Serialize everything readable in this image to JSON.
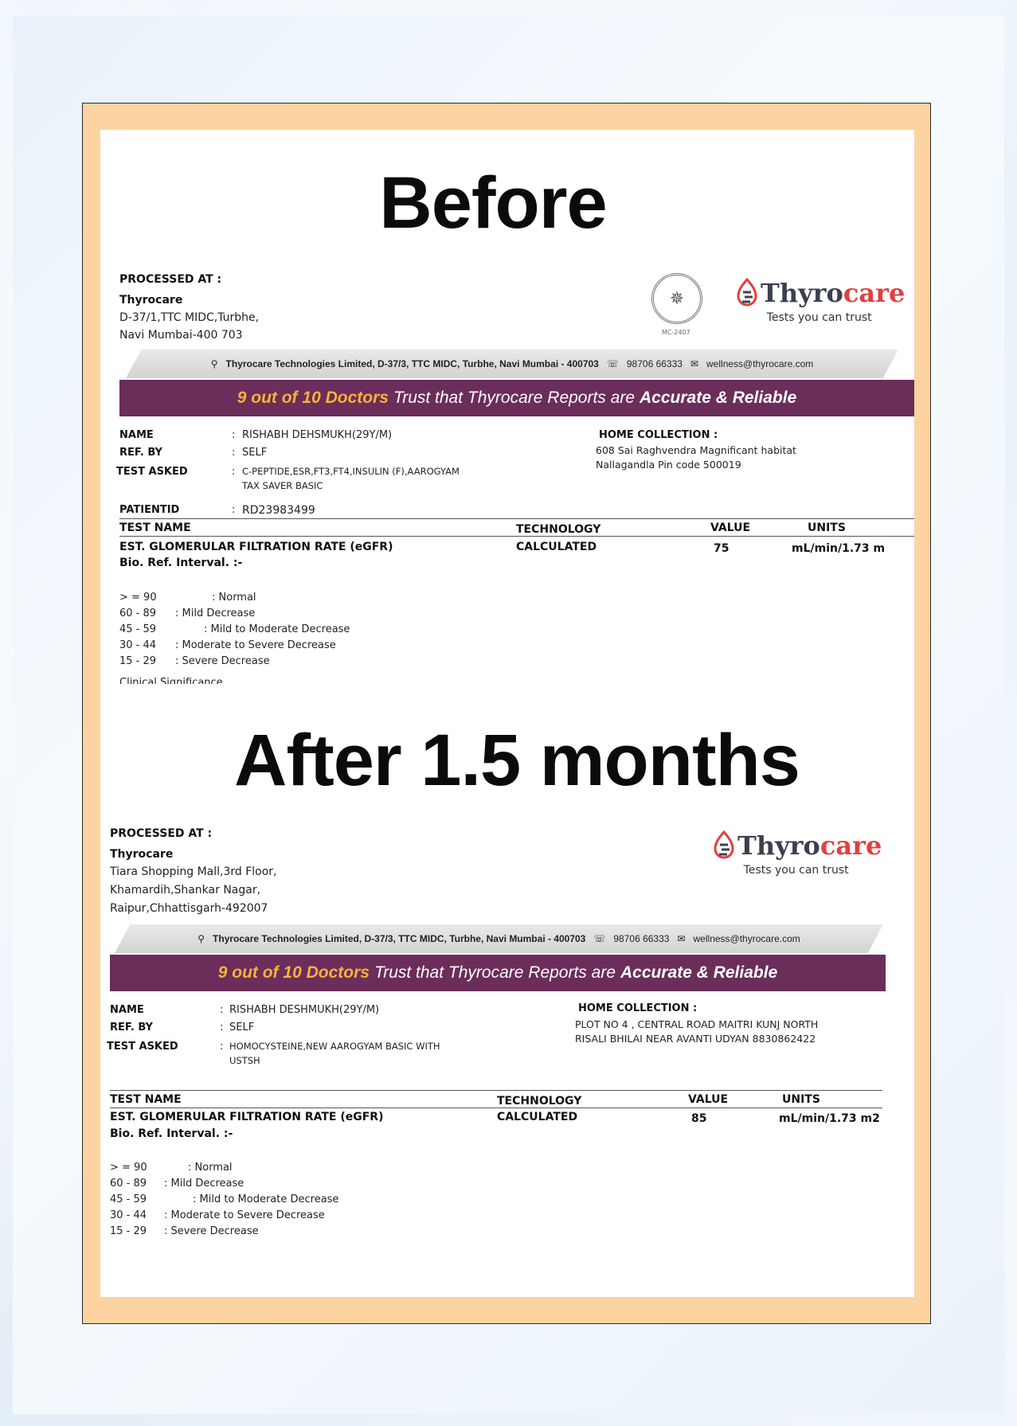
{
  "headings": {
    "before": "Before",
    "after": "After 1.5 months"
  },
  "brand": {
    "name_a": "Thyro",
    "name_b": "care",
    "tagline": "Tests you can trust",
    "seal_code": "MC-2407"
  },
  "banner": {
    "address": "Thyrocare Technologies Limited, D-37/3, TTC MIDC, Turbhe, Navi Mumbai - 400703",
    "phone": "98706 66333",
    "email": "wellness@thyrocare.com",
    "trust_highlight": "9 out of 10 Doctors",
    "trust_middle": "Trust that Thyrocare Reports are",
    "trust_bold": "Accurate & Reliable"
  },
  "labels": {
    "processed_at": "PROCESSED AT :",
    "name": "NAME",
    "ref_by": "REF. BY",
    "test_asked": "TEST ASKED",
    "home_collection": "HOME COLLECTION :",
    "patient_id": "PATIENTID",
    "test_name": "TEST NAME",
    "technology": "TECHNOLOGY",
    "value": "VALUE",
    "units": "UNITS",
    "colon": ":"
  },
  "ranges": [
    {
      "range": "> = 90",
      "desc": ": Normal"
    },
    {
      "range": "60 - 89",
      "desc": ": Mild Decrease"
    },
    {
      "range": "45 - 59",
      "desc": ": Mild to Moderate Decrease"
    },
    {
      "range": "30 - 44",
      "desc": ": Moderate to Severe Decrease"
    },
    {
      "range": "15 - 29",
      "desc": ": Severe Decrease"
    }
  ],
  "before": {
    "lab_name": "Thyrocare",
    "lab_addr1": "D-37/1,TTC MIDC,Turbhe,",
    "lab_addr2": "Navi Mumbai-400 703",
    "name": "RISHABH DEHSMUKH(29Y/M)",
    "ref_by": "SELF",
    "test_asked1": "C-PEPTIDE,ESR,FT3,FT4,INSULIN (F),AAROGYAM",
    "test_asked2": "TAX SAVER  BASIC",
    "home1": "608 Sai Raghvendra Magnificant habitat",
    "home2": "Nallagandla Pin code 500019",
    "patient_id": "RD23983499",
    "test": "EST. GLOMERULAR FILTRATION RATE (eGFR)",
    "interval": "Bio. Ref. Interval. :-",
    "technology": "CALCULATED",
    "value": "75",
    "units": "mL/min/1.73 m",
    "clinical": "Clinical Significance"
  },
  "after": {
    "lab_name": "Thyrocare",
    "lab_addr1": "Tiara Shopping Mall,3rd Floor,",
    "lab_addr2": "Khamardih,Shankar Nagar,",
    "lab_addr3": "Raipur,Chhattisgarh-492007",
    "name": "RISHABH  DESHMUKH(29Y/M)",
    "ref_by": "SELF",
    "test_asked1": "HOMOCYSTEINE,NEW AAROGYAM BASIC WITH",
    "test_asked2": "USTSH",
    "home1": "PLOT NO 4 , CENTRAL ROAD  MAITRI KUNJ NORTH",
    "home2": "RISALI BHILAI  NEAR AVANTI UDYAN  8830862422",
    "test": "EST. GLOMERULAR FILTRATION RATE (eGFR)",
    "interval": "Bio. Ref. Interval. :-",
    "technology": "CALCULATED",
    "value": "85",
    "units": "mL/min/1.73 m2"
  }
}
